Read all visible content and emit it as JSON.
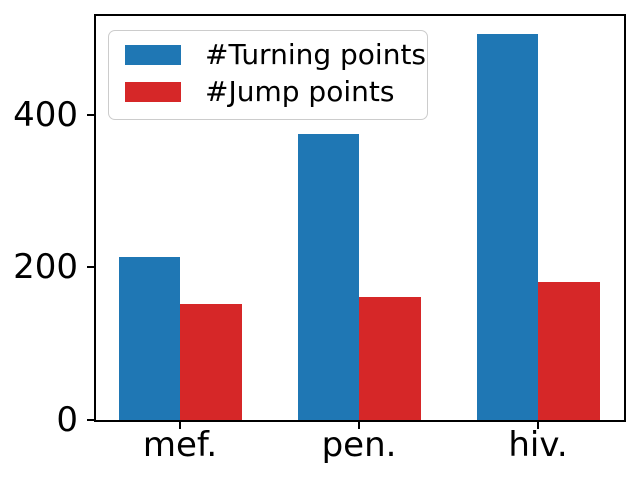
{
  "figure": {
    "background": "#ffffff"
  },
  "axes": {
    "spine_color": "#000000",
    "tick_color": "#000000",
    "tick_label_color": "#000000"
  },
  "chart_data": {
    "type": "bar",
    "title": "",
    "xlabel": "",
    "ylabel": "",
    "categories": [
      "mef.",
      "pen.",
      "hiv."
    ],
    "series": [
      {
        "name": "#Turning points",
        "color": "#1f77b4",
        "values": [
          213,
          375,
          505
        ]
      },
      {
        "name": "#Jump points",
        "color": "#d62728",
        "values": [
          152,
          161,
          181
        ]
      }
    ],
    "ylim": [
      0,
      529
    ],
    "yticks": [
      0,
      200,
      400
    ],
    "ytick_labels": [
      "0",
      "200",
      "400"
    ],
    "grid": false,
    "legend_position": "upper-left"
  }
}
